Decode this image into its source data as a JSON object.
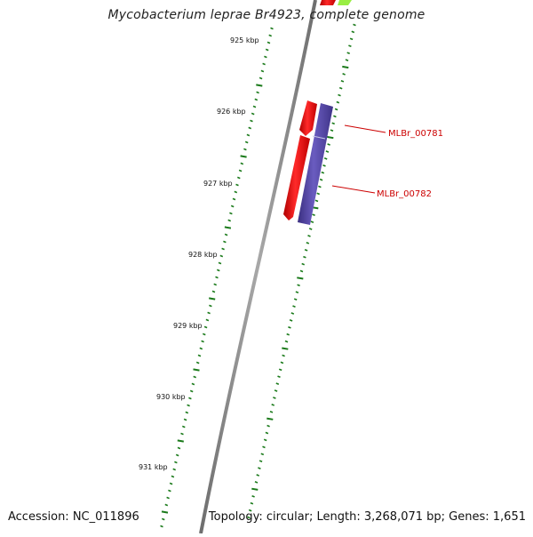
{
  "map": {
    "title": "Mycobacterium leprae Br4923, complete genome",
    "accession": "Accession: NC_011896",
    "summary": "Topology: circular; Length: 3,268,071 bp; Genes: 1,651"
  },
  "ruler": {
    "labels": [
      "925 kbp",
      "926 kbp",
      "927 kbp",
      "928 kbp",
      "929 kbp",
      "930 kbp",
      "931 kbp"
    ]
  },
  "features": [
    {
      "label": "MLBr_00781"
    },
    {
      "label": "MLBr_00782"
    }
  ],
  "colors": {
    "tick": "#1a7a1a",
    "backbone": "#888888",
    "forward_gene": "#ee1111",
    "reverse_gene": "#5544aa",
    "label": "#cc0000",
    "partial_gene": "#99ee44"
  }
}
